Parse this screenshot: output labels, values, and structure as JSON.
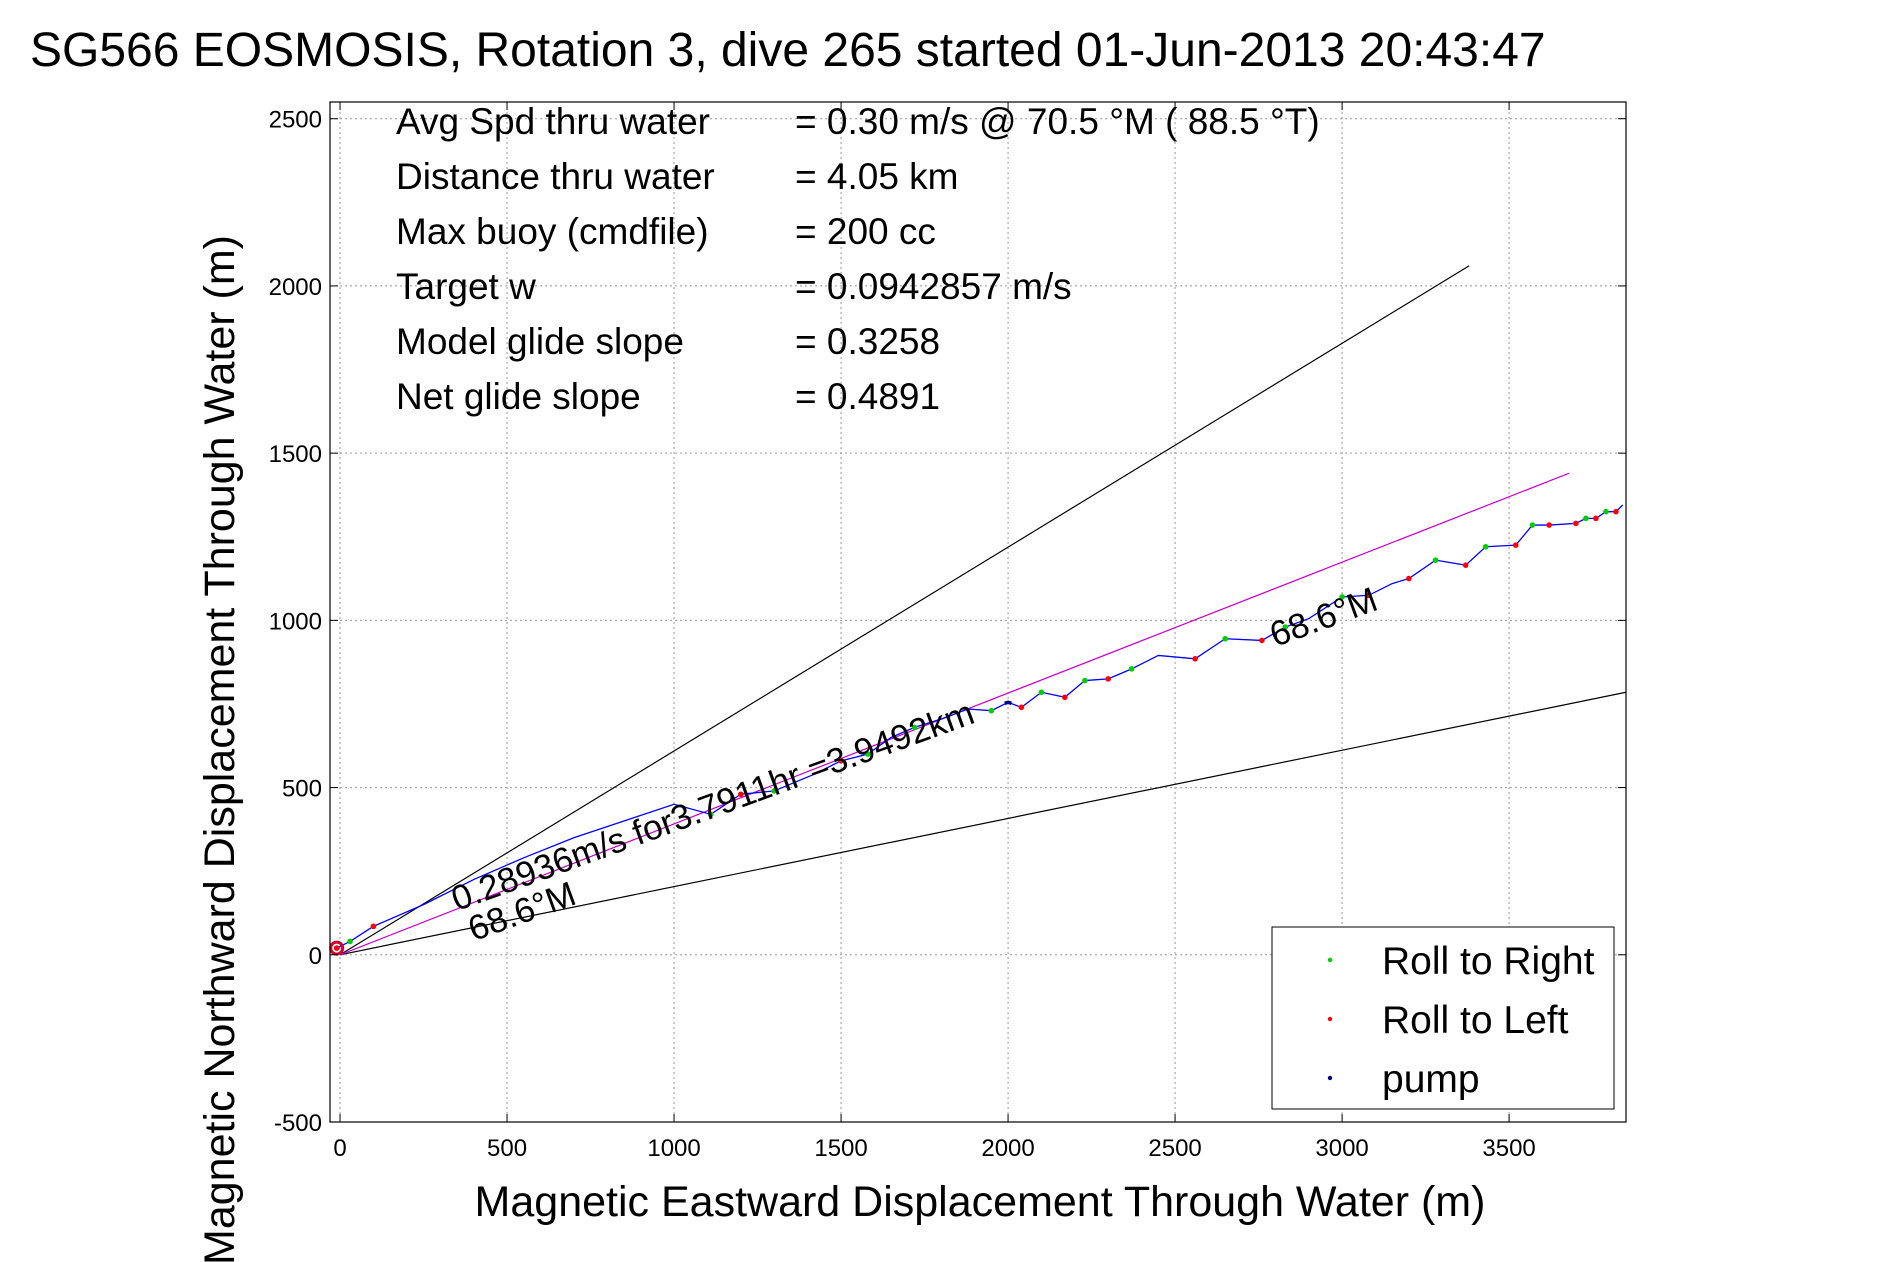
{
  "chart_data": {
    "type": "line",
    "title": "SG566 EOSMOSIS, Rotation 3, dive 265 started 01-Jun-2013 20:43:47",
    "xlabel": "Magnetic Eastward Displacement Through Water (m)",
    "ylabel": "Magnetic Northward Displacement Through Water (m)",
    "xlim": [
      -30,
      3850
    ],
    "ylim": [
      -500,
      2550
    ],
    "xticks": [
      0,
      500,
      1000,
      1500,
      2000,
      2500,
      3000,
      3500
    ],
    "yticks": [
      -500,
      0,
      500,
      1000,
      1500,
      2000,
      2500
    ],
    "xtick_labels": [
      "0",
      "500",
      "1000",
      "1500",
      "2000",
      "2500",
      "3000",
      "3500"
    ],
    "ytick_labels": [
      "-500",
      "0",
      "500",
      "1000",
      "1500",
      "2000",
      "2500"
    ],
    "grid": true,
    "legend_position": "bottom-right",
    "info": [
      {
        "label": "Avg Spd thru water",
        "value": "=  0.30 m/s @  70.5 °M ( 88.5 °T)"
      },
      {
        "label": "Distance thru water",
        "value": "=  4.05 km"
      },
      {
        "label": "Max buoy (cmdfile)",
        "value": "= 200 cc"
      },
      {
        "label": "Target w",
        "value": "= 0.0942857 m/s"
      },
      {
        "label": "Model glide slope",
        "value": "= 0.3258"
      },
      {
        "label": "Net glide slope",
        "value": "= 0.4891"
      }
    ],
    "annotations": [
      {
        "text": "0.28936m/s for3.7911hr =3.9492km",
        "x": 350,
        "y": 130,
        "angle": -20
      },
      {
        "text": "68.6°M",
        "x": 400,
        "y": 40,
        "angle": -20
      },
      {
        "text": "68.6°M",
        "x": 2800,
        "y": 920,
        "angle": -20
      }
    ],
    "reference_lines": [
      {
        "name": "upper-bound",
        "color": "#000000",
        "points": [
          [
            0,
            0
          ],
          [
            3380,
            2060
          ]
        ]
      },
      {
        "name": "lower-bound",
        "color": "#000000",
        "points": [
          [
            0,
            0
          ],
          [
            3850,
            785
          ]
        ]
      },
      {
        "name": "heading-line",
        "color": "#cc00cc",
        "points": [
          [
            0,
            0
          ],
          [
            3680,
            1440
          ]
        ]
      }
    ],
    "series": [
      {
        "name": "",
        "color": "#0000ff",
        "x": [
          -10,
          30,
          100,
          250,
          400,
          550,
          700,
          850,
          1000,
          1110,
          1200,
          1300,
          1420,
          1500,
          1580,
          1650,
          1720,
          1800,
          1880,
          1950,
          2000,
          2040,
          2100,
          2170,
          2230,
          2300,
          2370,
          2450,
          2560,
          2650,
          2760,
          2830,
          2900,
          3000,
          3080,
          3150,
          3200,
          3280,
          3370,
          3430,
          3520,
          3570,
          3620,
          3700,
          3730,
          3760,
          3790,
          3820,
          3840
        ],
        "y": [
          20,
          40,
          85,
          150,
          225,
          290,
          350,
          400,
          450,
          420,
          480,
          490,
          540,
          580,
          600,
          650,
          680,
          705,
          735,
          730,
          755,
          740,
          785,
          770,
          820,
          825,
          855,
          895,
          885,
          945,
          940,
          980,
          1005,
          1070,
          1075,
          1110,
          1125,
          1180,
          1165,
          1220,
          1225,
          1285,
          1285,
          1290,
          1305,
          1305,
          1325,
          1325,
          1345
        ]
      },
      {
        "name": "Roll to Right",
        "color": "#00cc00",
        "x": [
          30,
          1110,
          1300,
          1580,
          1720,
          1950,
          2100,
          2230,
          2370,
          2650,
          2830,
          3000,
          3280,
          3430,
          3570,
          3730,
          3790
        ],
        "y": [
          40,
          420,
          490,
          600,
          680,
          730,
          785,
          820,
          855,
          945,
          980,
          1070,
          1180,
          1220,
          1285,
          1305,
          1325
        ]
      },
      {
        "name": "Roll to Left",
        "color": "#ff0000",
        "x": [
          -10,
          100,
          1200,
          1500,
          2040,
          2170,
          2300,
          2560,
          2760,
          3080,
          3200,
          3370,
          3520,
          3620,
          3700,
          3760,
          3820
        ],
        "y": [
          20,
          85,
          480,
          580,
          740,
          770,
          825,
          885,
          940,
          1075,
          1125,
          1165,
          1225,
          1285,
          1290,
          1305,
          1325
        ]
      },
      {
        "name": "pump",
        "color": "#000080",
        "x": [
          1990,
          2000,
          2010
        ],
        "y": [
          752,
          755,
          752
        ]
      }
    ],
    "start_marker": {
      "x": -10,
      "y": 20,
      "color": "#cc0033"
    }
  }
}
